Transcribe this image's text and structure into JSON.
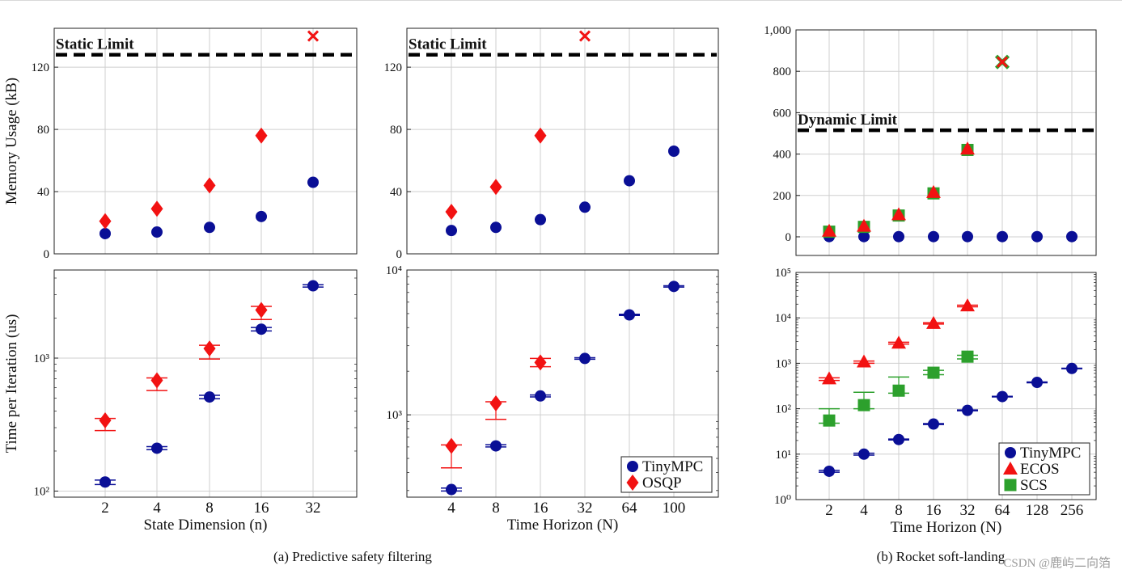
{
  "colors": {
    "tinympc": "#0a0f96",
    "osqp": "#f21212",
    "ecos": "#f21212",
    "scs": "#2ca02c",
    "fail_cross_red": "#f21212",
    "fail_cross_green": "#2ca02c",
    "limit_line": "#000000",
    "grid": "#cfcfcf"
  },
  "figure": {
    "caption_a": "(a) Predictive safety filtering",
    "caption_b": "(b) Rocket soft-landing",
    "watermark": "CSDN @鹿屿二向箔"
  },
  "chart_data": [
    {
      "id": "p1",
      "type": "scatter",
      "yscale": "linear",
      "ylim": [
        0,
        145
      ],
      "yticks": [
        0,
        40,
        80,
        120
      ],
      "ytick_labels": [
        "0",
        "40",
        "80",
        "120"
      ],
      "ylabel": "Memory Usage (kB)",
      "xlabel": "",
      "categories": [
        "2",
        "4",
        "8",
        "16",
        "32"
      ],
      "show_xticks": false,
      "limit": {
        "label": "Static Limit",
        "value": 128
      },
      "series": [
        {
          "name": "TinyMPC",
          "marker": "circle",
          "values": [
            13,
            14,
            17,
            24,
            46
          ]
        },
        {
          "name": "OSQP",
          "marker": "diamond",
          "values": [
            21,
            29,
            44,
            76,
            null
          ]
        }
      ],
      "failures": [
        {
          "category_index": 4,
          "value": 140,
          "color": "fail_cross_red"
        }
      ]
    },
    {
      "id": "p2",
      "type": "scatter",
      "yscale": "linear",
      "ylim": [
        0,
        145
      ],
      "yticks": [
        0,
        40,
        80,
        120
      ],
      "ytick_labels": [
        "0",
        "40",
        "80",
        "120"
      ],
      "ylabel": "",
      "xlabel": "",
      "categories": [
        "4",
        "8",
        "16",
        "32",
        "64",
        "100"
      ],
      "show_xticks": false,
      "limit": {
        "label": "Static Limit",
        "value": 128
      },
      "series": [
        {
          "name": "TinyMPC",
          "marker": "circle",
          "values": [
            15,
            17,
            22,
            30,
            47,
            66
          ]
        },
        {
          "name": "OSQP",
          "marker": "diamond",
          "values": [
            27,
            43,
            76,
            null,
            null,
            null
          ]
        }
      ],
      "failures": [
        {
          "category_index": 3,
          "value": 140,
          "color": "fail_cross_red"
        }
      ]
    },
    {
      "id": "p3",
      "type": "scatter",
      "yscale": "linear",
      "ylim": [
        -90,
        1000
      ],
      "yticks": [
        0,
        200,
        400,
        600,
        800,
        1000
      ],
      "ytick_labels": [
        "0",
        "200",
        "400",
        "600",
        "800",
        "1,000"
      ],
      "ylabel": "",
      "xlabel": "",
      "categories": [
        "2",
        "4",
        "8",
        "16",
        "32",
        "64",
        "128",
        "256"
      ],
      "show_xticks": false,
      "limit": {
        "label": "Dynamic Limit",
        "value": 515
      },
      "series": [
        {
          "name": "TinyMPC",
          "marker": "circle",
          "values": [
            1,
            1,
            1,
            1,
            1,
            1,
            1,
            1
          ]
        },
        {
          "name": "SCS",
          "marker": "square",
          "values": [
            25,
            48,
            103,
            210,
            420,
            null,
            null,
            null
          ]
        },
        {
          "name": "ECOS",
          "marker": "triangle",
          "values": [
            28,
            52,
            108,
            215,
            425,
            null,
            null,
            null
          ]
        }
      ],
      "failures": [
        {
          "category_index": 5,
          "value": 845,
          "color": "fail_cross_green"
        },
        {
          "category_index": 5,
          "value": 845,
          "color": "fail_cross_red"
        }
      ]
    },
    {
      "id": "p4",
      "type": "scatter",
      "yscale": "log",
      "ylim": [
        90,
        4600
      ],
      "yticks": [
        100,
        1000
      ],
      "ytick_labels": [
        "10²",
        "10³"
      ],
      "ylabel": "Time per Iteration (us)",
      "xlabel": "State Dimension (n)",
      "categories": [
        "2",
        "4",
        "8",
        "16",
        "32"
      ],
      "show_xticks": true,
      "series": [
        {
          "name": "TinyMPC",
          "marker": "circle",
          "values": [
            117,
            210,
            510,
            1650,
            3500
          ],
          "err_low": [
            112,
            205,
            495,
            1600,
            3420
          ],
          "err_high": [
            121,
            216,
            525,
            1700,
            3560
          ]
        },
        {
          "name": "OSQP",
          "marker": "diamond",
          "values": [
            340,
            680,
            1180,
            2300,
            null
          ],
          "err_low": [
            285,
            570,
            985,
            1950,
            null
          ],
          "err_high": [
            352,
            710,
            1250,
            2450,
            null
          ]
        }
      ]
    },
    {
      "id": "p5",
      "type": "scatter",
      "yscale": "log",
      "ylim": [
        270,
        10000
      ],
      "yticks": [
        1000,
        10000
      ],
      "ytick_labels": [
        "10³",
        "10⁴"
      ],
      "ylabel": "",
      "xlabel": "Time Horizon (N)",
      "categories": [
        "4",
        "8",
        "16",
        "32",
        "64",
        "100"
      ],
      "show_xticks": true,
      "series": [
        {
          "name": "TinyMPC",
          "marker": "circle",
          "values": [
            305,
            610,
            1350,
            2450,
            4900,
            7700
          ],
          "err_low": [
            298,
            600,
            1330,
            2420,
            4850,
            7620
          ],
          "err_high": [
            312,
            622,
            1370,
            2480,
            4950,
            7780
          ]
        },
        {
          "name": "OSQP",
          "marker": "diamond",
          "values": [
            610,
            1200,
            2300,
            null,
            null,
            null
          ],
          "err_low": [
            430,
            930,
            2150,
            null,
            null,
            null
          ],
          "err_high": [
            620,
            1230,
            2450,
            null,
            null,
            null
          ]
        }
      ],
      "legend": {
        "position": "bottom-right",
        "entries": [
          {
            "name": "TinyMPC",
            "marker": "circle"
          },
          {
            "name": "OSQP",
            "marker": "diamond"
          }
        ]
      }
    },
    {
      "id": "p6",
      "type": "scatter",
      "yscale": "log",
      "ylim": [
        1,
        100000
      ],
      "yticks": [
        1,
        10,
        100,
        1000,
        10000,
        100000
      ],
      "ytick_labels": [
        "10⁰",
        "10¹",
        "10²",
        "10³",
        "10⁴",
        "10⁵"
      ],
      "ylabel": "",
      "xlabel": "Time Horizon (N)",
      "categories": [
        "2",
        "4",
        "8",
        "16",
        "32",
        "64",
        "128",
        "256"
      ],
      "show_xticks": true,
      "series": [
        {
          "name": "TinyMPC",
          "marker": "circle",
          "values": [
            4.2,
            10,
            21,
            46,
            92,
            185,
            380,
            770
          ],
          "err_low": [
            4.0,
            9.5,
            20.5,
            45,
            90,
            182,
            372,
            760
          ],
          "err_high": [
            4.4,
            10.5,
            21.5,
            47,
            94,
            188,
            388,
            780
          ]
        },
        {
          "name": "ECOS",
          "marker": "triangle",
          "values": [
            460,
            1080,
            2800,
            7600,
            18500,
            null,
            null,
            null
          ],
          "err_low": [
            420,
            1000,
            2650,
            7300,
            17500,
            null,
            null,
            null
          ],
          "err_high": [
            480,
            1120,
            2900,
            7800,
            19000,
            null,
            null,
            null
          ]
        },
        {
          "name": "SCS",
          "marker": "square",
          "values": [
            55,
            120,
            250,
            620,
            1400,
            null,
            null,
            null
          ],
          "err_low": [
            48,
            100,
            220,
            560,
            1250,
            null,
            null,
            null
          ],
          "err_high": [
            100,
            230,
            500,
            700,
            1500,
            null,
            null,
            null
          ]
        }
      ],
      "legend": {
        "position": "bottom-right",
        "entries": [
          {
            "name": "TinyMPC",
            "marker": "circle"
          },
          {
            "name": "ECOS",
            "marker": "triangle"
          },
          {
            "name": "SCS",
            "marker": "square"
          }
        ]
      }
    }
  ]
}
